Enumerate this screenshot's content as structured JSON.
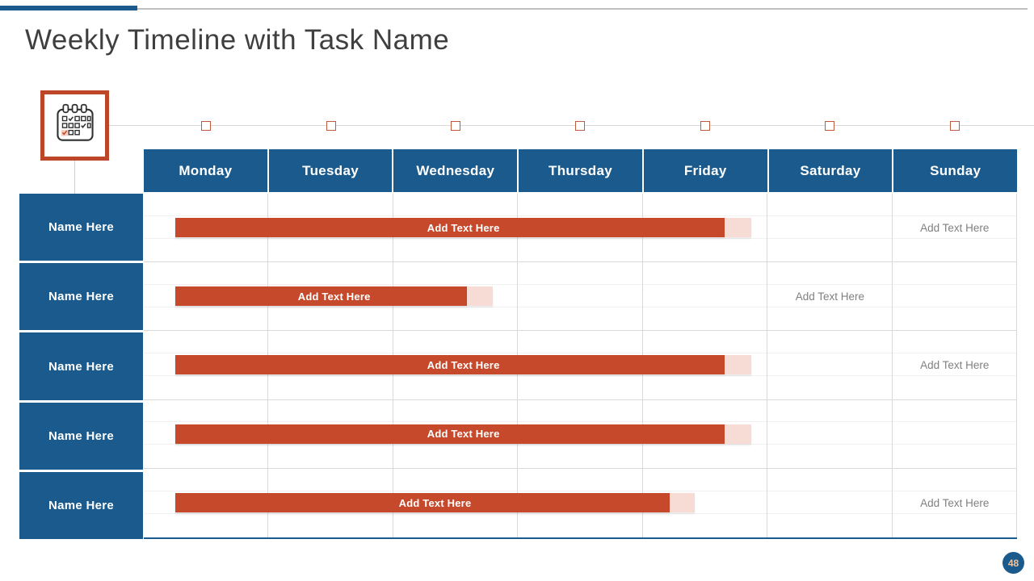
{
  "slide": {
    "title": "Weekly Timeline with Task Name",
    "page_number": "48"
  },
  "colors": {
    "primary_blue": "#1A5A8C",
    "accent_orange": "#C7492B",
    "bar_tail_pink": "#F6DCD4",
    "grid_line": "#D9D9D9",
    "muted_text": "#808080",
    "title_text": "#3F3F3F",
    "badge_text": "#F2C49B"
  },
  "icons": {
    "calendar_icon": "calendar-with-checkmarks"
  },
  "timeline": {
    "marker_count": 7
  },
  "table": {
    "day_headers": [
      "Monday",
      "Tuesday",
      "Wednesday",
      "Thursday",
      "Friday",
      "Saturday",
      "Sunday"
    ],
    "rows": [
      {
        "name": "Name Here",
        "bar": {
          "label": "Add Text Here",
          "span": "Monday to Friday",
          "start_pct": 3.6,
          "end_pct": 66.5,
          "tail_end_pct": 69.6
        },
        "placeholders": [
          {
            "day": "Sunday",
            "text": "Add Text Here"
          }
        ]
      },
      {
        "name": "Name Here",
        "bar": {
          "label": "Add Text Here",
          "span": "Monday to Wednesday",
          "start_pct": 3.6,
          "end_pct": 37.0,
          "tail_end_pct": 40.0
        },
        "placeholders": [
          {
            "day": "Saturday",
            "text": "Add Text Here"
          }
        ]
      },
      {
        "name": "Name Here",
        "bar": {
          "label": "Add Text Here",
          "span": "Monday to Friday",
          "start_pct": 3.6,
          "end_pct": 66.5,
          "tail_end_pct": 69.6
        },
        "placeholders": [
          {
            "day": "Sunday",
            "text": "Add Text Here"
          }
        ]
      },
      {
        "name": "Name Here",
        "bar": {
          "label": "Add Text Here",
          "span": "Monday to Friday",
          "start_pct": 3.6,
          "end_pct": 66.5,
          "tail_end_pct": 69.6
        },
        "placeholders": []
      },
      {
        "name": "Name Here",
        "bar": {
          "label": "Add Text Here",
          "span": "Monday to Friday",
          "start_pct": 3.6,
          "end_pct": 60.2,
          "tail_end_pct": 63.1
        },
        "placeholders": [
          {
            "day": "Sunday",
            "text": "Add Text Here"
          }
        ]
      }
    ]
  }
}
